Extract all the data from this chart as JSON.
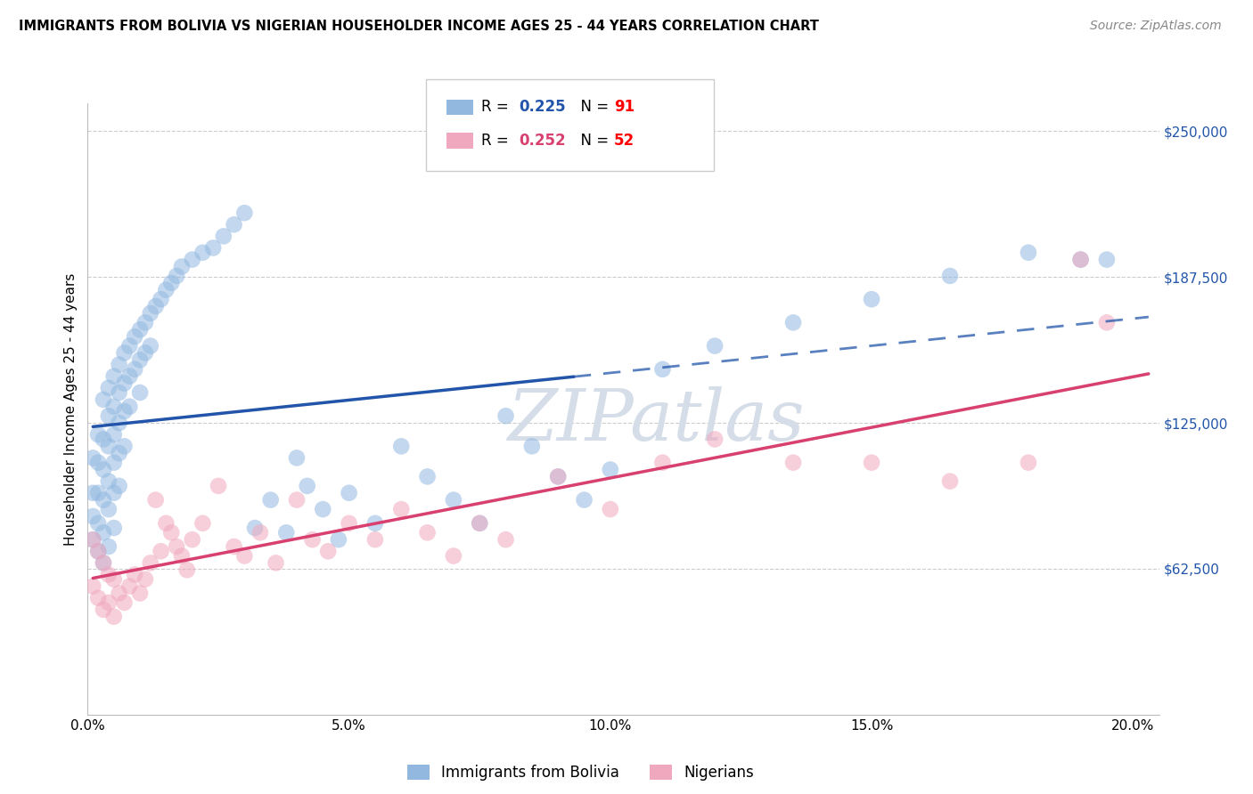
{
  "title": "IMMIGRANTS FROM BOLIVIA VS NIGERIAN HOUSEHOLDER INCOME AGES 25 - 44 YEARS CORRELATION CHART",
  "source": "Source: ZipAtlas.com",
  "ylabel": "Householder Income Ages 25 - 44 years",
  "ylabel_ticks": [
    "$62,500",
    "$125,000",
    "$187,500",
    "$250,000"
  ],
  "ylabel_vals": [
    62500,
    125000,
    187500,
    250000
  ],
  "xlabel_ticks": [
    "0.0%",
    "5.0%",
    "10.0%",
    "15.0%",
    "20.0%"
  ],
  "xlabel_vals": [
    0.0,
    0.05,
    0.1,
    0.15,
    0.2
  ],
  "xlim": [
    0.0,
    0.205
  ],
  "ylim": [
    0,
    262000
  ],
  "bolivia_R": "0.225",
  "bolivia_N": "91",
  "nigerian_R": "0.252",
  "nigerian_N": "52",
  "bolivia_color": "#92b8e0",
  "nigerian_color": "#f0a8bf",
  "bolivia_line_color": "#2255aa",
  "nigerian_line_color": "#d84070",
  "grid_color": "#cccccc",
  "bolivia_x": [
    0.001,
    0.001,
    0.001,
    0.001,
    0.002,
    0.002,
    0.002,
    0.002,
    0.002,
    0.003,
    0.003,
    0.003,
    0.003,
    0.003,
    0.003,
    0.004,
    0.004,
    0.004,
    0.004,
    0.004,
    0.004,
    0.005,
    0.005,
    0.005,
    0.005,
    0.005,
    0.005,
    0.006,
    0.006,
    0.006,
    0.006,
    0.006,
    0.007,
    0.007,
    0.007,
    0.007,
    0.008,
    0.008,
    0.008,
    0.009,
    0.009,
    0.01,
    0.01,
    0.01,
    0.011,
    0.011,
    0.012,
    0.012,
    0.013,
    0.014,
    0.015,
    0.016,
    0.017,
    0.018,
    0.02,
    0.022,
    0.024,
    0.026,
    0.028,
    0.03,
    0.032,
    0.035,
    0.038,
    0.04,
    0.042,
    0.045,
    0.048,
    0.05,
    0.055,
    0.06,
    0.065,
    0.07,
    0.075,
    0.08,
    0.085,
    0.09,
    0.095,
    0.1,
    0.11,
    0.12,
    0.135,
    0.15,
    0.165,
    0.18,
    0.19,
    0.195
  ],
  "bolivia_y": [
    110000,
    95000,
    85000,
    75000,
    120000,
    108000,
    95000,
    82000,
    70000,
    135000,
    118000,
    105000,
    92000,
    78000,
    65000,
    140000,
    128000,
    115000,
    100000,
    88000,
    72000,
    145000,
    132000,
    120000,
    108000,
    95000,
    80000,
    150000,
    138000,
    125000,
    112000,
    98000,
    155000,
    142000,
    130000,
    115000,
    158000,
    145000,
    132000,
    162000,
    148000,
    165000,
    152000,
    138000,
    168000,
    155000,
    172000,
    158000,
    175000,
    178000,
    182000,
    185000,
    188000,
    192000,
    195000,
    198000,
    200000,
    205000,
    210000,
    215000,
    80000,
    92000,
    78000,
    110000,
    98000,
    88000,
    75000,
    95000,
    82000,
    115000,
    102000,
    92000,
    82000,
    128000,
    115000,
    102000,
    92000,
    105000,
    148000,
    158000,
    168000,
    178000,
    188000,
    198000,
    195000,
    195000
  ],
  "nigerian_x": [
    0.001,
    0.001,
    0.002,
    0.002,
    0.003,
    0.003,
    0.004,
    0.004,
    0.005,
    0.005,
    0.006,
    0.007,
    0.008,
    0.009,
    0.01,
    0.011,
    0.012,
    0.013,
    0.014,
    0.015,
    0.016,
    0.017,
    0.018,
    0.019,
    0.02,
    0.022,
    0.025,
    0.028,
    0.03,
    0.033,
    0.036,
    0.04,
    0.043,
    0.046,
    0.05,
    0.055,
    0.06,
    0.065,
    0.07,
    0.075,
    0.08,
    0.09,
    0.1,
    0.11,
    0.12,
    0.135,
    0.15,
    0.165,
    0.18,
    0.19,
    0.195
  ],
  "nigerian_y": [
    75000,
    55000,
    70000,
    50000,
    65000,
    45000,
    60000,
    48000,
    58000,
    42000,
    52000,
    48000,
    55000,
    60000,
    52000,
    58000,
    65000,
    92000,
    70000,
    82000,
    78000,
    72000,
    68000,
    62000,
    75000,
    82000,
    98000,
    72000,
    68000,
    78000,
    65000,
    92000,
    75000,
    70000,
    82000,
    75000,
    88000,
    78000,
    68000,
    82000,
    75000,
    102000,
    88000,
    108000,
    118000,
    108000,
    108000,
    100000,
    108000,
    195000,
    168000
  ],
  "bolivia_line_intercept": 100000,
  "bolivia_line_slope": 350000,
  "nigerian_line_intercept": 72000,
  "nigerian_line_slope": 290000,
  "line_solid_end": 0.093
}
